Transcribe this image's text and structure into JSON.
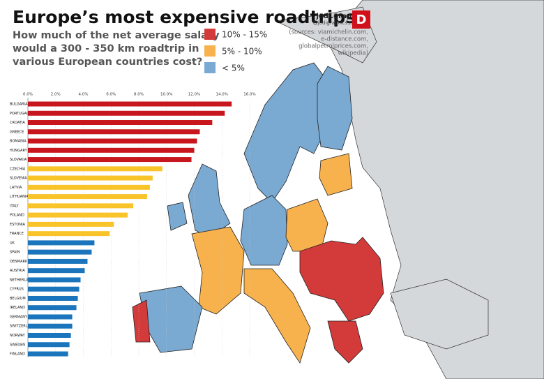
{
  "chart_data": {
    "type": "bar",
    "orientation": "horizontal",
    "title": "Europe’s most expensive roadtrips",
    "subtitle": [
      "How much of the net average salary",
      "would a 300 - 350 km roadtrip in",
      "various European countries cost?"
    ],
    "brand": "jodi.graphics",
    "handle": "@jodigraphics15",
    "logo": "D",
    "sources": [
      "(sources: viamichelin.com,",
      "e-distance.com,",
      "globalpetrolprices.com,",
      "wikipedia)"
    ],
    "categories": [
      "BULGARIA",
      "PORTUGAL",
      "CROATIA",
      "GREECE",
      "ROMANIA",
      "HUNGARY",
      "SLOVAKIA",
      "CZECHIA",
      "SLOVENIA",
      "LATVIA",
      "LITHUANIA",
      "ITALY",
      "POLAND",
      "ESTONIA",
      "FRANCE",
      "UK",
      "SPAIN",
      "DENMARK",
      "AUSTRIA",
      "NETHERLANDS",
      "CYPRUS",
      "BELGIUM",
      "IRELAND",
      "GERMANY",
      "SWITZERLAND",
      "NORWAY",
      "SWEDEN",
      "FINLAND"
    ],
    "series": [
      {
        "name": "10% - 15%",
        "color": "#c8161e",
        "map_color": "#d33a3a",
        "values": [
          14.7,
          14.2,
          13.3,
          12.4,
          12.2,
          12.0,
          11.8,
          null,
          null,
          null,
          null,
          null,
          null,
          null,
          null,
          null,
          null,
          null,
          null,
          null,
          null,
          null,
          null,
          null,
          null,
          null,
          null,
          null
        ]
      },
      {
        "name": "5% - 10%",
        "color": "#f9c42a",
        "map_color": "#f7b24e",
        "values": [
          null,
          null,
          null,
          null,
          null,
          null,
          null,
          9.7,
          9.0,
          8.8,
          8.6,
          7.6,
          7.2,
          6.2,
          5.9,
          null,
          null,
          null,
          null,
          null,
          null,
          null,
          null,
          null,
          null,
          null,
          null,
          null
        ]
      },
      {
        "name": "< 5%",
        "color": "#1b75bc",
        "map_color": "#7aa9d2",
        "values": [
          null,
          null,
          null,
          null,
          null,
          null,
          null,
          null,
          null,
          null,
          null,
          null,
          null,
          null,
          null,
          4.8,
          4.6,
          4.3,
          4.1,
          3.8,
          3.7,
          3.6,
          3.5,
          3.2,
          3.2,
          3.1,
          3.0,
          2.9
        ]
      }
    ],
    "xlim": [
      0,
      16
    ],
    "xticks": [
      {
        "value": 0,
        "label": "0.0%"
      },
      {
        "value": 2,
        "label": "2.0%"
      },
      {
        "value": 4,
        "label": "4.0%"
      },
      {
        "value": 6,
        "label": "6.0%"
      },
      {
        "value": 8,
        "label": "8.0%"
      },
      {
        "value": 10,
        "label": "10.0%"
      },
      {
        "value": 12,
        "label": "12.0%"
      },
      {
        "value": 14,
        "label": "14.0%"
      },
      {
        "value": 16,
        "label": "16.0%"
      }
    ],
    "grid": true
  }
}
